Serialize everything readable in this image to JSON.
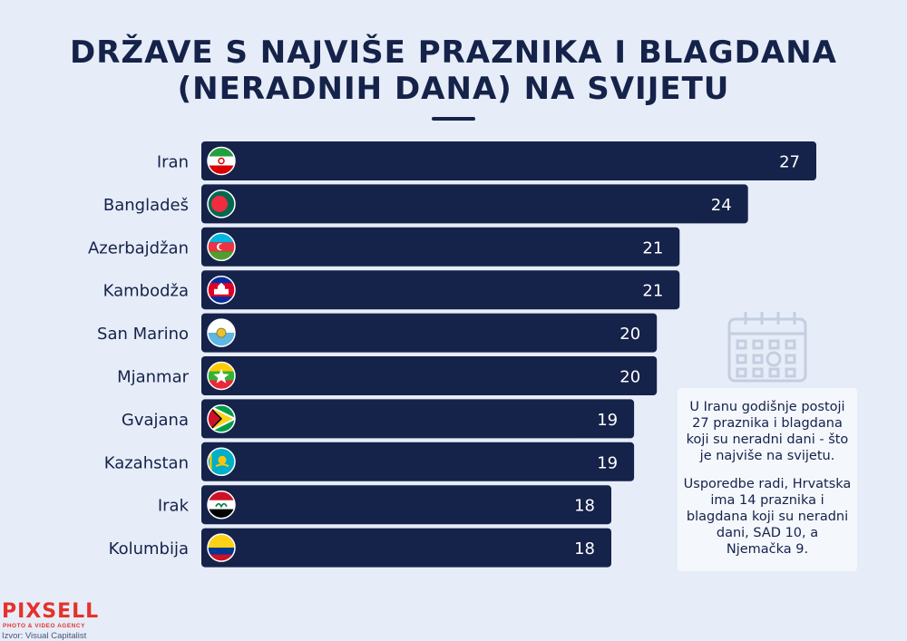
{
  "title_line1": "DRŽAVE S NAJVIŠE PRAZNIKA I BLAGDANA",
  "title_line2": "(NERADNIH DANA) NA SVIJETU",
  "note": {
    "p1": "U Iranu godišnje postoji 27 praznika i blagdana koji su neradni dani - što je najviše na svijetu.",
    "p2": "Usporedbe radi, Hrvatska ima 14 praznika i blagdana koji su neradni dani, SAD 10, a Njemačka 9."
  },
  "logo": {
    "name": "PIXSELL",
    "tagline": "PHOTO & VIDEO AGENCY"
  },
  "source": "Izvor: Visual Capitalist",
  "colors": {
    "bar": "#15224a",
    "background": "#e6edf8",
    "value_text": "#ffffff",
    "label_text": "#15224a",
    "brand": "#e4322b"
  },
  "icons": {
    "note_icon": "calendar-icon"
  },
  "chart_data": {
    "type": "bar",
    "orientation": "horizontal",
    "title": "DRŽAVE S NAJVIŠE PRAZNIKA I BLAGDANA (NERADNIH DANA) NA SVIJETU",
    "categories": [
      "Iran",
      "Bangladeš",
      "Azerbajdžan",
      "Kambodža",
      "San Marino",
      "Mjanmar",
      "Gvajana",
      "Kazahstan",
      "Irak",
      "Kolumbija"
    ],
    "values": [
      27,
      24,
      21,
      21,
      20,
      20,
      19,
      19,
      18,
      18
    ],
    "flags": [
      "iran-flag-icon",
      "bangladesh-flag-icon",
      "azerbaijan-flag-icon",
      "cambodia-flag-icon",
      "san-marino-flag-icon",
      "myanmar-flag-icon",
      "guyana-flag-icon",
      "kazakhstan-flag-icon",
      "iraq-flag-icon",
      "colombia-flag-icon"
    ],
    "xlim": [
      0,
      27
    ],
    "grid": false,
    "legend": "none"
  }
}
